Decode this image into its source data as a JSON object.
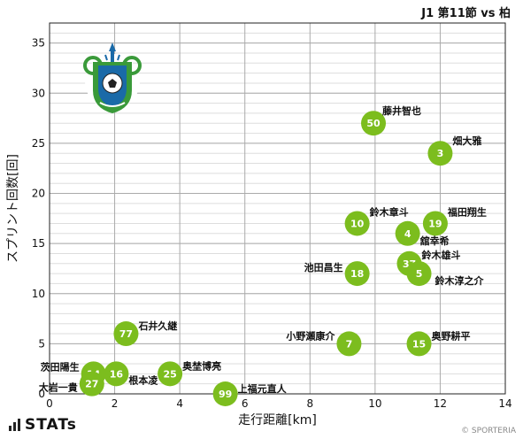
{
  "page": {
    "title": "J1 第11節 vs 柏",
    "brand": "STATs",
    "copyright": "© SPORTERIA"
  },
  "colors": {
    "point": "#7cbd1e",
    "point_text": "#ffffff",
    "grid_major": "#aaaaaa",
    "grid_minor": "#dddddd",
    "logo_green": "#3a9a3a",
    "logo_blue": "#1a6aa8"
  },
  "icons": {
    "club_logo": "shonan-bellmare-crest-icon",
    "brand_logo": "stats-bars-icon"
  },
  "chart_data": {
    "type": "scatter",
    "xlabel": "走行距離[km]",
    "ylabel": "スプリント回数[回]",
    "xlim": [
      0,
      14
    ],
    "ylim": [
      0,
      37
    ],
    "xticks": [
      0,
      2,
      4,
      6,
      8,
      10,
      12,
      14
    ],
    "yticks": [
      0,
      5,
      10,
      15,
      20,
      25,
      30,
      35
    ],
    "grid": true,
    "points": [
      {
        "number": "50",
        "name": "藤井智也",
        "x": 9.95,
        "y": 27
      },
      {
        "number": "3",
        "name": "畑大雅",
        "x": 12.0,
        "y": 24
      },
      {
        "number": "10",
        "name": "鈴木章斗",
        "x": 9.45,
        "y": 17
      },
      {
        "number": "19",
        "name": "福田翔生",
        "x": 11.85,
        "y": 17
      },
      {
        "number": "4",
        "name": "舘幸希",
        "x": 11.0,
        "y": 16
      },
      {
        "number": "37",
        "name": "鈴木雄斗",
        "x": 11.05,
        "y": 13
      },
      {
        "number": "5",
        "name": "鈴木淳之介",
        "x": 11.35,
        "y": 12
      },
      {
        "number": "18",
        "name": "池田昌生",
        "x": 9.45,
        "y": 12
      },
      {
        "number": "77",
        "name": "石井久継",
        "x": 2.35,
        "y": 6
      },
      {
        "number": "7",
        "name": "小野瀬康介",
        "x": 9.2,
        "y": 5
      },
      {
        "number": "15",
        "name": "奥野耕平",
        "x": 11.35,
        "y": 5
      },
      {
        "number": "25",
        "name": "奥埜博亮",
        "x": 3.7,
        "y": 2
      },
      {
        "number": "16",
        "name": "根本凌",
        "x": 2.05,
        "y": 2
      },
      {
        "number": "14",
        "name": "茨田陽生",
        "x": 1.35,
        "y": 2
      },
      {
        "number": "27",
        "name": "大岩一貴",
        "x": 1.3,
        "y": 1
      },
      {
        "number": "99",
        "name": "上福元直人",
        "x": 5.4,
        "y": 0
      }
    ]
  }
}
